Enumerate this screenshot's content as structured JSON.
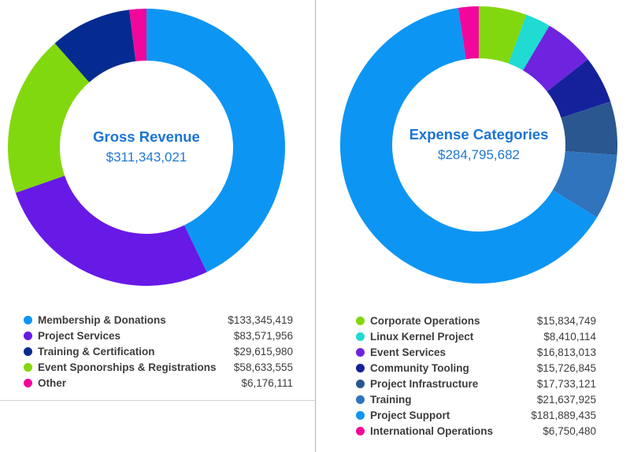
{
  "page": {
    "background": "#ffffff",
    "divider_color": "#b5b5b5",
    "center_text_color": "#1b74d4",
    "legend_text_color": "#3c3c3c"
  },
  "chart_data": [
    {
      "type": "pie",
      "subtype": "donut",
      "title": "Gross Revenue",
      "total_label": "$311,343,021",
      "total_value": 311343021,
      "direction": "clockwise",
      "start_angle_deg": 0,
      "legend_position": "bottom",
      "categories": [
        "Membership & Donations",
        "Project Services",
        "Training & Certification",
        "Event Sponorships & Registrations",
        "Other"
      ],
      "values": [
        133345419,
        83571956,
        29615980,
        58633555,
        6176111
      ],
      "value_labels": [
        "$133,345,419",
        "$83,571,956",
        "$29,615,980",
        "$58,633,555",
        "$6,176,111"
      ],
      "colors": [
        "#0d95f4",
        "#6719e6",
        "#052b91",
        "#82d80e",
        "#f2079c"
      ],
      "draw_order": [
        0,
        1,
        3,
        2,
        4
      ]
    },
    {
      "type": "pie",
      "subtype": "donut",
      "title": "Expense Categories",
      "total_label": "$284,795,682",
      "total_value": 284795682,
      "direction": "clockwise",
      "start_angle_deg": 0,
      "legend_position": "bottom",
      "categories": [
        "Corporate Operations",
        "Linux Kernel Project",
        "Event Services",
        "Community Tooling",
        "Project Infrastructure",
        "Training",
        "Project Support",
        "International Operations"
      ],
      "values": [
        15834749,
        8410114,
        16813013,
        15726845,
        17733121,
        21637925,
        181889435,
        6750480
      ],
      "value_labels": [
        "$15,834,749",
        "$8,410,114",
        "$16,813,013",
        "$15,726,845",
        "$17,733,121",
        "$21,637,925",
        "$181,889,435",
        "$6,750,480"
      ],
      "colors": [
        "#82d80e",
        "#1fdbd2",
        "#6e24de",
        "#15219b",
        "#2a578f",
        "#2f74bd",
        "#0d95f4",
        "#f2079c"
      ],
      "draw_order": [
        0,
        1,
        2,
        3,
        4,
        5,
        6,
        7
      ]
    }
  ]
}
